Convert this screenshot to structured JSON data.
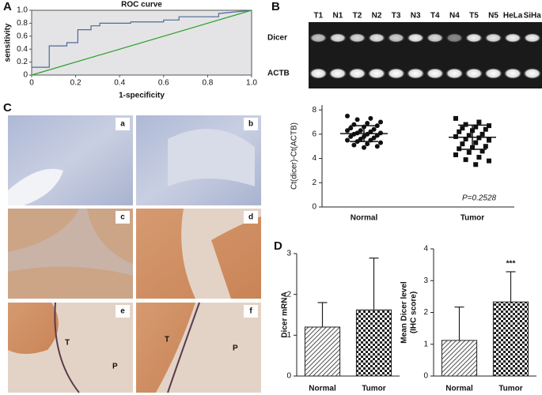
{
  "panel_labels": [
    "A",
    "B",
    "C",
    "D"
  ],
  "chart_data": [
    {
      "type": "line",
      "title": "ROC  curve",
      "xlabel": "1-specificity",
      "ylabel": "sensitivity",
      "xlim": [
        0,
        1
      ],
      "ylim": [
        0,
        1
      ],
      "xticks": [
        0,
        0.2,
        0.4,
        0.6,
        0.8,
        {
          "value": 1,
          "label": "1.0"
        }
      ],
      "yticks": [
        0,
        0.2,
        0.4,
        0.6,
        0.8,
        {
          "value": 1,
          "label": "1.0"
        }
      ],
      "series": [
        {
          "color": "#4e6a96",
          "x": [
            0,
            0.08,
            0.08,
            0.16,
            0.16,
            0.21,
            0.21,
            0.27,
            0.27,
            0.31,
            0.31,
            0.45,
            0.45,
            0.6,
            0.6,
            0.67,
            0.67,
            0.85,
            0.85,
            1.0
          ],
          "values": [
            0.12,
            0.12,
            0.45,
            0.45,
            0.5,
            0.5,
            0.7,
            0.7,
            0.76,
            0.76,
            0.8,
            0.8,
            0.82,
            0.82,
            0.85,
            0.85,
            0.9,
            0.9,
            0.95,
            1.0
          ]
        },
        {
          "color": "#2ca02c",
          "x": [
            0,
            1
          ],
          "values": [
            0,
            1
          ]
        }
      ]
    },
    {
      "type": "dotplot",
      "ylabel": "Ct(dicer)-Ct(ACTB)",
      "categories": [
        "Normal",
        "Tumor"
      ],
      "ylim": [
        0,
        8.4
      ],
      "yticks": [
        0,
        2,
        4,
        6,
        8
      ],
      "values": [
        [
          7.5,
          7.3,
          7.2,
          7.0,
          6.9,
          6.8,
          6.7,
          6.6,
          6.5,
          6.4,
          6.3,
          6.3,
          6.2,
          6.1,
          6.1,
          6.0,
          6.0,
          5.9,
          5.8,
          5.8,
          5.7,
          5.6,
          5.5,
          5.5,
          5.4,
          5.3,
          5.2,
          5.1,
          5.0,
          4.9
        ],
        [
          7.3,
          7.0,
          6.8,
          6.7,
          6.6,
          6.5,
          6.4,
          6.3,
          6.2,
          6.0,
          5.9,
          5.8,
          5.7,
          5.6,
          5.5,
          5.3,
          5.2,
          5.0,
          4.9,
          4.8,
          4.6,
          4.5,
          4.3,
          4.1,
          3.9,
          3.8,
          3.5
        ]
      ],
      "mean": [
        6.05,
        5.75
      ],
      "sd": [
        0.65,
        1.0
      ],
      "annotation": "P=0.2528"
    },
    {
      "type": "bar",
      "ylabel": "Dicer mRNA",
      "categories": [
        "Normal",
        "Tumor"
      ],
      "values": [
        1.2,
        1.62
      ],
      "errors": [
        0.6,
        1.27
      ],
      "ylim": [
        0,
        3
      ],
      "yticks": [
        0,
        1,
        2,
        3
      ]
    },
    {
      "type": "bar",
      "ylabel": [
        "Mean Dicer level",
        "(IHC score)"
      ],
      "categories": [
        "Normal",
        "Tumor"
      ],
      "values": [
        1.12,
        2.33
      ],
      "errors": [
        1.05,
        0.95
      ],
      "ylim": [
        0,
        4
      ],
      "yticks": [
        0,
        1,
        2,
        3,
        4
      ],
      "annotation": "***"
    }
  ],
  "gel": {
    "lanes": [
      "T1",
      "N1",
      "T2",
      "N2",
      "T3",
      "N3",
      "T4",
      "N4",
      "T5",
      "N5",
      "HeLa",
      "SiHa"
    ],
    "rows": [
      "Dicer",
      "ACTB"
    ]
  },
  "ihc": {
    "images": [
      "a",
      "b",
      "c",
      "d",
      "e",
      "f"
    ],
    "annotations": [
      "T",
      "P",
      "T",
      "P"
    ]
  }
}
